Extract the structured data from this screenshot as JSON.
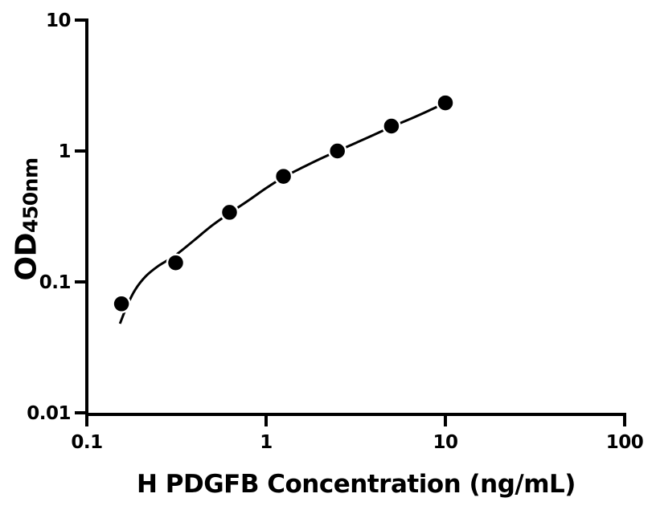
{
  "chart_data": {
    "type": "scatter",
    "title": "",
    "xlabel": "H PDGFB Concentration (ng/mL)",
    "ylabel": "OD",
    "ylabel_subscript": "450nm",
    "x_scale": "log",
    "y_scale": "log",
    "xlim": [
      0.1,
      100
    ],
    "ylim": [
      0.01,
      10
    ],
    "x_ticks": {
      "values": [
        0.1,
        1,
        10,
        100
      ],
      "labels": [
        "0.1",
        "1",
        "10",
        "100"
      ]
    },
    "y_ticks": {
      "values": [
        0.01,
        0.1,
        1,
        10
      ],
      "labels": [
        "0.01",
        "0.1",
        "1",
        "10"
      ]
    },
    "grid": false,
    "legend": false,
    "background": "#ffffff",
    "axis_color": "#000000",
    "series": [
      {
        "name": "H PDGFB standard points",
        "marker": "circle",
        "marker_color": "#000000",
        "marker_halo_color": "#ffffff",
        "x": [
          0.156,
          0.313,
          0.625,
          1.25,
          2.5,
          5,
          10
        ],
        "y": [
          0.068,
          0.14,
          0.34,
          0.64,
          1.0,
          1.55,
          2.33
        ]
      }
    ],
    "fit_curve": {
      "name": "four-parameter fit curve",
      "color": "#000000",
      "points": [
        [
          0.153,
          0.048
        ],
        [
          0.168,
          0.066
        ],
        [
          0.186,
          0.087
        ],
        [
          0.214,
          0.111
        ],
        [
          0.25,
          0.132
        ],
        [
          0.3125,
          0.16
        ],
        [
          0.4,
          0.21
        ],
        [
          0.5,
          0.27
        ],
        [
          0.625,
          0.335
        ],
        [
          0.8,
          0.42
        ],
        [
          1.0,
          0.52
        ],
        [
          1.25,
          0.63
        ],
        [
          1.6,
          0.75
        ],
        [
          2.0,
          0.87
        ],
        [
          2.5,
          1.0
        ],
        [
          3.2,
          1.16
        ],
        [
          4.0,
          1.33
        ],
        [
          5.0,
          1.53
        ],
        [
          6.5,
          1.78
        ],
        [
          8.0,
          2.02
        ],
        [
          10.0,
          2.33
        ]
      ]
    }
  }
}
